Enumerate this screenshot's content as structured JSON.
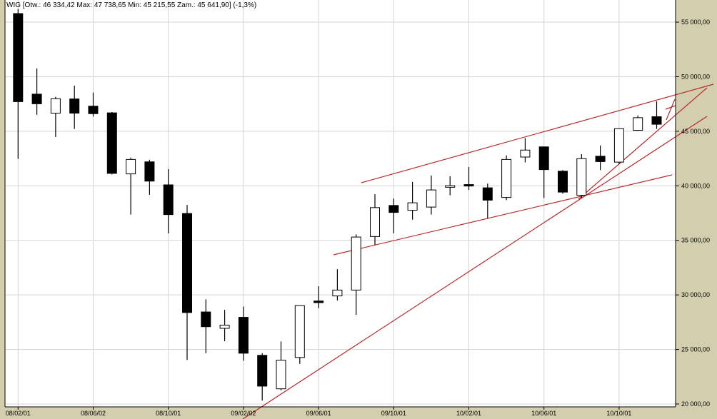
{
  "header": "WIG [Otw.: 46 334,42  Max: 47 738,65  Min: 45 215,55  Zam.: 45 641,90] (-1,3%)",
  "chart_data": {
    "type": "candlestick",
    "title": "WIG [Otw.: 46 334,42  Max: 47 738,65  Min: 45 215,55  Zam.: 45 641,90] (-1,3%)",
    "ylim": [
      20000,
      56500
    ],
    "grid": true,
    "y_ticks": [
      {
        "value": 55000,
        "label": "55 000,00"
      },
      {
        "value": 50000,
        "label": "50 000,00"
      },
      {
        "value": 45000,
        "label": "45 000,00"
      },
      {
        "value": 40000,
        "label": "40 000,00"
      },
      {
        "value": 35000,
        "label": "35 000,00"
      },
      {
        "value": 30000,
        "label": "30 000,00"
      },
      {
        "value": 25000,
        "label": "25 000,00"
      },
      {
        "value": 20000,
        "label": "20 000,00"
      }
    ],
    "x_ticks": [
      {
        "index": 0,
        "label": "08/02/01"
      },
      {
        "index": 4,
        "label": "08/06/02"
      },
      {
        "index": 8,
        "label": "08/10/01"
      },
      {
        "index": 12,
        "label": "09/02/02"
      },
      {
        "index": 16,
        "label": "09/06/01"
      },
      {
        "index": 20,
        "label": "09/10/01"
      },
      {
        "index": 24,
        "label": "10/02/01"
      },
      {
        "index": 28,
        "label": "10/06/01"
      },
      {
        "index": 32,
        "label": "10/10/01"
      }
    ],
    "candles": [
      {
        "o": 55785,
        "h": 56200,
        "l": 42465,
        "c": 47715
      },
      {
        "o": 48401,
        "h": 50756,
        "l": 46512,
        "c": 47518
      },
      {
        "o": 46660,
        "h": 48156,
        "l": 44477,
        "c": 47984
      },
      {
        "o": 47960,
        "h": 49186,
        "l": 45212,
        "c": 46660
      },
      {
        "o": 47298,
        "h": 48549,
        "l": 46341,
        "c": 46611
      },
      {
        "o": 46684,
        "h": 46758,
        "l": 41043,
        "c": 41141
      },
      {
        "o": 41091,
        "h": 42588,
        "l": 37363,
        "c": 42416
      },
      {
        "o": 42195,
        "h": 42392,
        "l": 39178,
        "c": 40429
      },
      {
        "o": 40085,
        "h": 41533,
        "l": 35645,
        "c": 37363
      },
      {
        "o": 37461,
        "h": 38246,
        "l": 24043,
        "c": 28385
      },
      {
        "o": 28434,
        "h": 29587,
        "l": 24657,
        "c": 27085
      },
      {
        "o": 26937,
        "h": 28630,
        "l": 25760,
        "c": 27232
      },
      {
        "o": 27944,
        "h": 28925,
        "l": 23969,
        "c": 24657
      },
      {
        "o": 24461,
        "h": 24657,
        "l": 20314,
        "c": 21640
      },
      {
        "o": 21394,
        "h": 25736,
        "l": 21247,
        "c": 24019
      },
      {
        "o": 24264,
        "h": 29022,
        "l": 23675,
        "c": 29022
      },
      {
        "o": 29440,
        "h": 30789,
        "l": 28777,
        "c": 29293
      },
      {
        "o": 29906,
        "h": 32358,
        "l": 29489,
        "c": 30445
      },
      {
        "o": 30445,
        "h": 35548,
        "l": 28170,
        "c": 35303
      },
      {
        "o": 35352,
        "h": 39227,
        "l": 34567,
        "c": 38001
      },
      {
        "o": 38197,
        "h": 38835,
        "l": 35646,
        "c": 37559
      },
      {
        "o": 37756,
        "h": 40355,
        "l": 36897,
        "c": 38442
      },
      {
        "o": 38050,
        "h": 40944,
        "l": 37363,
        "c": 39620
      },
      {
        "o": 39865,
        "h": 40871,
        "l": 39129,
        "c": 40012
      },
      {
        "o": 40110,
        "h": 41729,
        "l": 39620,
        "c": 40037
      },
      {
        "o": 39816,
        "h": 40208,
        "l": 37019,
        "c": 38687
      },
      {
        "o": 38933,
        "h": 42784,
        "l": 38687,
        "c": 42416
      },
      {
        "o": 42637,
        "h": 44378,
        "l": 42146,
        "c": 43274
      },
      {
        "o": 43569,
        "h": 43569,
        "l": 38884,
        "c": 41484
      },
      {
        "o": 41337,
        "h": 41435,
        "l": 39276,
        "c": 39423
      },
      {
        "o": 39129,
        "h": 42907,
        "l": 38884,
        "c": 42490
      },
      {
        "o": 42710,
        "h": 43692,
        "l": 41435,
        "c": 42220
      },
      {
        "o": 42171,
        "h": 45237,
        "l": 41999,
        "c": 45237
      },
      {
        "o": 45090,
        "h": 46439,
        "l": 45041,
        "c": 46243
      },
      {
        "o": 46334.42,
        "h": 47738.65,
        "l": 45215.55,
        "c": 45641.9
      }
    ],
    "colors": {
      "up": "#ffffff",
      "down": "#000000",
      "trendline": "#b52a2a",
      "background": "#d3cfae",
      "grid": "#d4d4d4"
    }
  }
}
